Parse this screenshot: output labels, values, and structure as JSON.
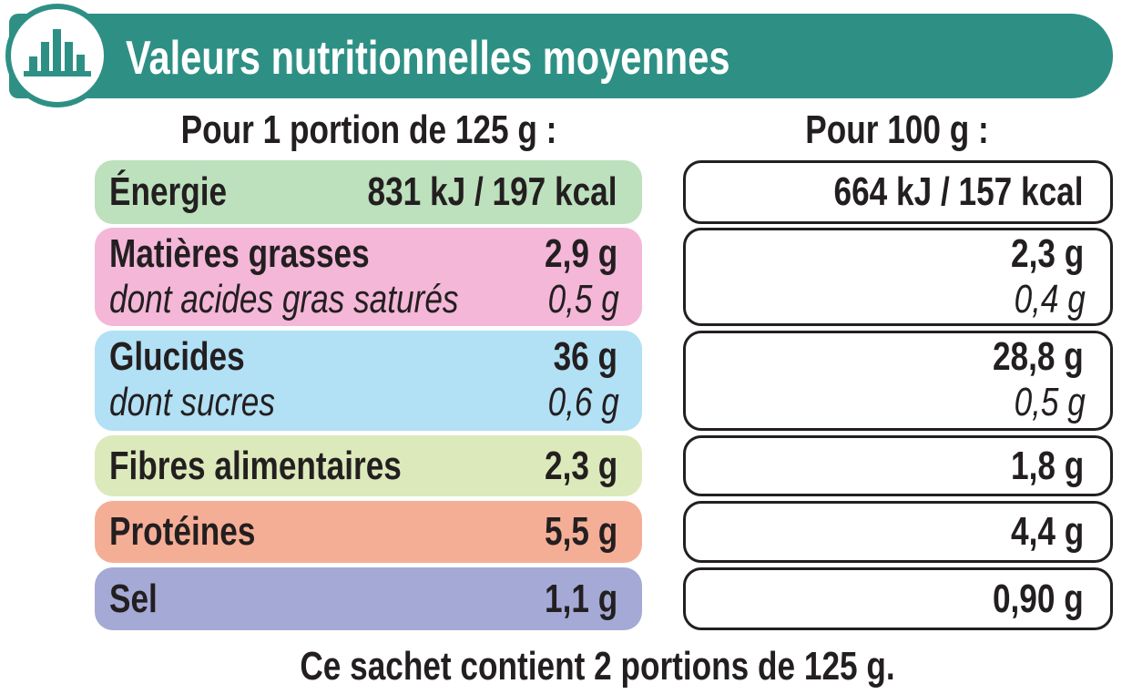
{
  "header": {
    "title": "Valeurs nutritionnelles moyennes"
  },
  "columns": [
    "Pour 1 portion de 125 g :",
    "Pour 100 g :"
  ],
  "rows": [
    {
      "label": "Énergie",
      "per_portion": "831 kJ / 197 kcal",
      "per_100g": "664 kJ / 157 kcal"
    },
    {
      "label": "Matières grasses",
      "per_portion": "2,9 g",
      "per_100g": "2,3 g",
      "sub": {
        "label": "dont acides gras saturés",
        "per_portion": "0,5 g",
        "per_100g": "0,4 g"
      }
    },
    {
      "label": "Glucides",
      "per_portion": "36 g",
      "per_100g": "28,8 g",
      "sub": {
        "label": "dont sucres",
        "per_portion": "0,6 g",
        "per_100g": "0,5 g"
      }
    },
    {
      "label": "Fibres alimentaires",
      "per_portion": "2,3 g",
      "per_100g": "1,8 g"
    },
    {
      "label": "Protéines",
      "per_portion": "5,5 g",
      "per_100g": "4,4 g"
    },
    {
      "label": "Sel",
      "per_portion": "1,1 g",
      "per_100g": "0,90 g"
    }
  ],
  "footer": "Ce sachet contient 2 portions de 125 g."
}
